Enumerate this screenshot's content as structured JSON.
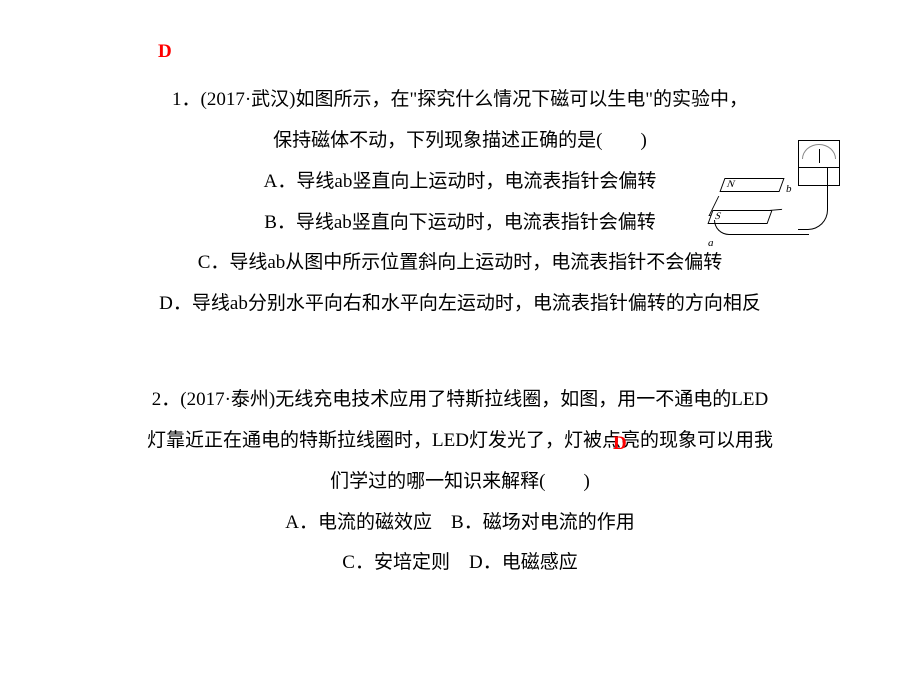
{
  "q1": {
    "line1": "1．(2017·武汉)如图所示，在\"探究什么情况下磁可以生电\"的实验中，",
    "answer": "D",
    "line2": "保持磁体不动，下列现象描述正确的是(　　)",
    "optA": "A．导线ab竖直向上运动时，电流表指针会偏转",
    "optB": "B．导线ab竖直向下运动时，电流表指针会偏转",
    "optC": "C．导线ab从图中所示位置斜向上运动时，电流表指针不会偏转",
    "optD": "D．导线ab分别水平向右和水平向左运动时，电流表指针偏转的方向相反",
    "diagram": {
      "poles": {
        "north": "N",
        "south": "S"
      },
      "wire_labels": {
        "a": "a",
        "b": "b"
      },
      "line_color": "#000000",
      "bg_color": "#ffffff"
    }
  },
  "q2": {
    "line1": "2．(2017·泰州)无线充电技术应用了特斯拉线圈，如图，用一不通电的LED",
    "line2_a": "灯靠近正在通电的特斯拉线圈时，LED灯发光了，灯被点",
    "answer": "D",
    "line2_b": "亮的现象可以用我",
    "line3": "们学过的哪一知识来解释(　　)",
    "optAB": "A．电流的磁效应　B．磁场对电流的作用",
    "optCD": "C．安培定则　D．电磁感应"
  },
  "style": {
    "text_color": "#000000",
    "answer_color": "#ff0000",
    "font_size": 19,
    "line_height": 2.15,
    "background": "#ffffff"
  }
}
